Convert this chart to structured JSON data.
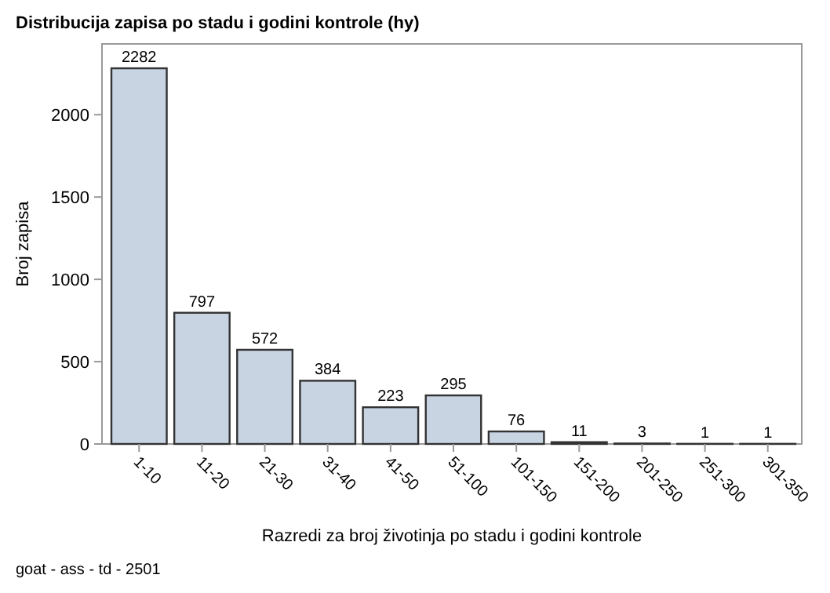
{
  "chart_data": {
    "type": "bar",
    "title": "Distribucija zapisa po stadu i godini kontrole (hy)",
    "xlabel": "Razredi za broj životinja po stadu i godini kontrole",
    "ylabel": "Broj zapisa",
    "categories": [
      "1-10",
      "11-20",
      "21-30",
      "31-40",
      "41-50",
      "51-100",
      "101-150",
      "151-200",
      "201-250",
      "251-300",
      "301-350"
    ],
    "values": [
      2282,
      797,
      572,
      384,
      223,
      295,
      76,
      11,
      3,
      1,
      1
    ],
    "color": "#c9d4e3",
    "ylim": [
      0,
      2430
    ],
    "yticks": [
      0,
      500,
      1000,
      1500,
      2000
    ],
    "data_labels": true,
    "grid": false,
    "annotations": [
      "goat - ass - td - 2501"
    ]
  }
}
